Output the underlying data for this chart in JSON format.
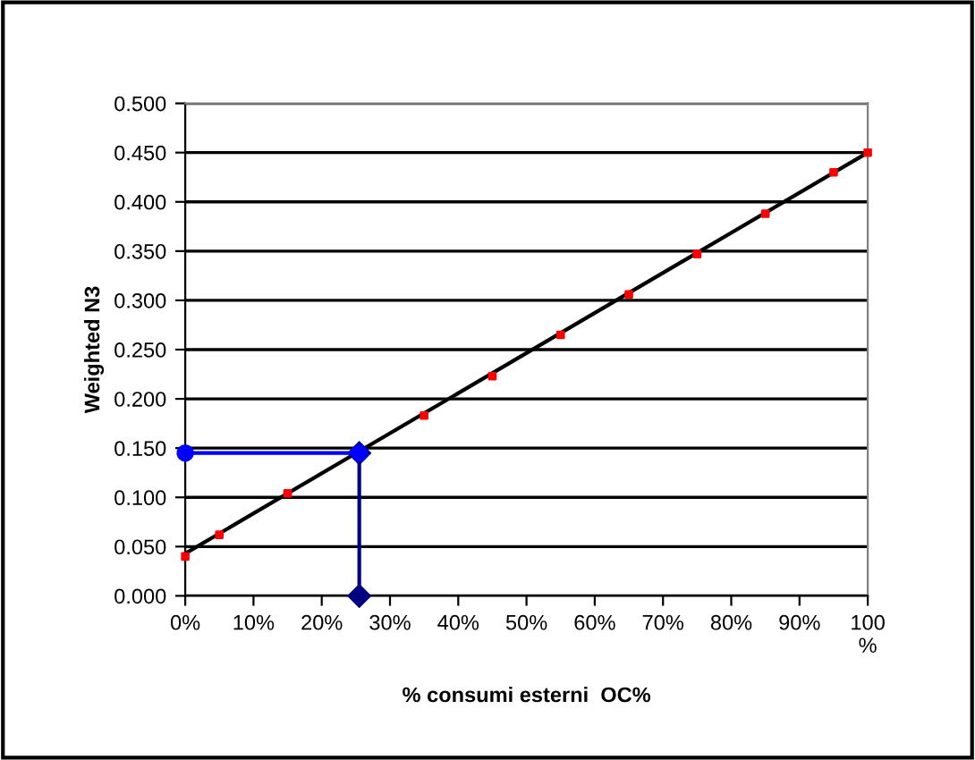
{
  "chart_data": {
    "type": "scatter",
    "xlabel": "% consumi esterni  OC%",
    "ylabel": "Weighted N3",
    "xlim": [
      0,
      100
    ],
    "ylim": [
      0,
      0.5
    ],
    "xticks": [
      {
        "value": 0,
        "label": "0%"
      },
      {
        "value": 10,
        "label": "10%"
      },
      {
        "value": 20,
        "label": "20%"
      },
      {
        "value": 30,
        "label": "30%"
      },
      {
        "value": 40,
        "label": "40%"
      },
      {
        "value": 50,
        "label": "50%"
      },
      {
        "value": 60,
        "label": "60%"
      },
      {
        "value": 70,
        "label": "70%"
      },
      {
        "value": 80,
        "label": "80%"
      },
      {
        "value": 90,
        "label": "90%"
      },
      {
        "value": 100,
        "label": "100\n%"
      }
    ],
    "yticks": [
      {
        "value": 0,
        "label": "0.000"
      },
      {
        "value": 0.05,
        "label": "0.050"
      },
      {
        "value": 0.1,
        "label": "0.100"
      },
      {
        "value": 0.15,
        "label": "0.150"
      },
      {
        "value": 0.2,
        "label": "0.200"
      },
      {
        "value": 0.25,
        "label": "0.250"
      },
      {
        "value": 0.3,
        "label": "0.300"
      },
      {
        "value": 0.35,
        "label": "0.350"
      },
      {
        "value": 0.4,
        "label": "0.400"
      },
      {
        "value": 0.45,
        "label": "0.450"
      },
      {
        "value": 0.5,
        "label": "0.500"
      }
    ],
    "grid": "y",
    "legend": false,
    "series": [
      {
        "type": "line",
        "color": "#000000",
        "marker": "none",
        "x": [
          0,
          100
        ],
        "values": [
          0.043,
          0.45
        ]
      },
      {
        "color": "#ff0000",
        "marker": "square",
        "x": [
          0,
          5,
          15,
          35,
          45,
          55,
          65,
          75,
          85,
          95,
          100
        ],
        "values": [
          0.04,
          0.062,
          0.104,
          0.183,
          0.223,
          0.265,
          0.306,
          0.347,
          0.388,
          0.43,
          0.45
        ]
      },
      {
        "type": "line",
        "color": "#000080",
        "marker": "diamond",
        "x": [
          25.5,
          25.5
        ],
        "values": [
          0.145,
          0
        ]
      },
      {
        "type": "line",
        "color": "#0000ff",
        "marker": "circle",
        "x": [
          0,
          25.5
        ],
        "values": [
          0.145,
          0.145
        ]
      }
    ]
  }
}
